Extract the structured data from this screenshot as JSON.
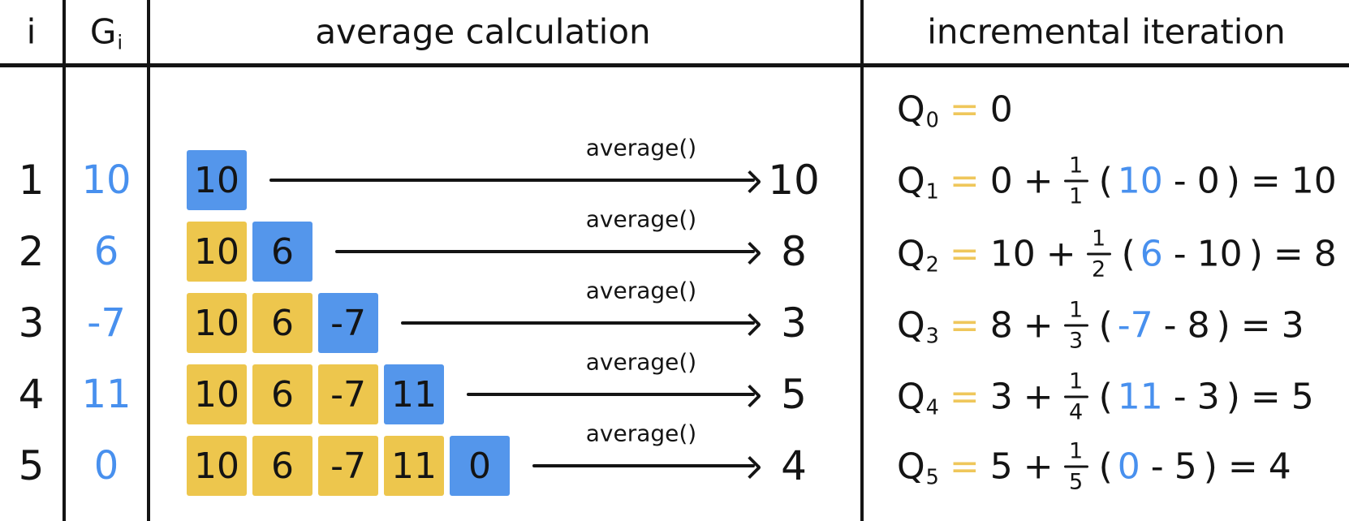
{
  "palette": {
    "ink": "#141414",
    "box_blue": "#5496EB",
    "box_yellow": "#EDC64D",
    "value_blue": "#4890EE",
    "equals_yellow": "#EFC75B"
  },
  "headers": {
    "index": "i",
    "g_base": "G",
    "g_subscript": "i",
    "average_column": "average calculation",
    "incremental_column": "incremental iteration"
  },
  "labels": {
    "average_fn": "average()",
    "plus": "+",
    "minus": "-",
    "equals": "=",
    "paren_open": "(",
    "paren_close": ")",
    "frac_numerator": "1"
  },
  "rows": [
    {
      "i": "1",
      "g": "10",
      "boxes": [
        "10"
      ],
      "result": "10"
    },
    {
      "i": "2",
      "g": "6",
      "boxes": [
        "10",
        "6"
      ],
      "result": "8"
    },
    {
      "i": "3",
      "g": "-7",
      "boxes": [
        "10",
        "6",
        "-7"
      ],
      "result": "3"
    },
    {
      "i": "4",
      "g": "11",
      "boxes": [
        "10",
        "6",
        "-7",
        "11"
      ],
      "result": "5"
    },
    {
      "i": "5",
      "g": "0",
      "boxes": [
        "10",
        "6",
        "-7",
        "11",
        "0"
      ],
      "result": "4"
    }
  ],
  "incremental": {
    "base": {
      "q": "Q",
      "sub": "0",
      "value": "0"
    },
    "steps": [
      {
        "q": "Q",
        "sub": "1",
        "prev": "0",
        "denominator": "1",
        "g": "10",
        "result": "10"
      },
      {
        "q": "Q",
        "sub": "2",
        "prev": "10",
        "denominator": "2",
        "g": "6",
        "result": "8"
      },
      {
        "q": "Q",
        "sub": "3",
        "prev": "8",
        "denominator": "3",
        "g": "-7",
        "result": "3"
      },
      {
        "q": "Q",
        "sub": "4",
        "prev": "3",
        "denominator": "4",
        "g": "11",
        "result": "5"
      },
      {
        "q": "Q",
        "sub": "5",
        "prev": "5",
        "denominator": "5",
        "g": "0",
        "result": "4"
      }
    ]
  }
}
